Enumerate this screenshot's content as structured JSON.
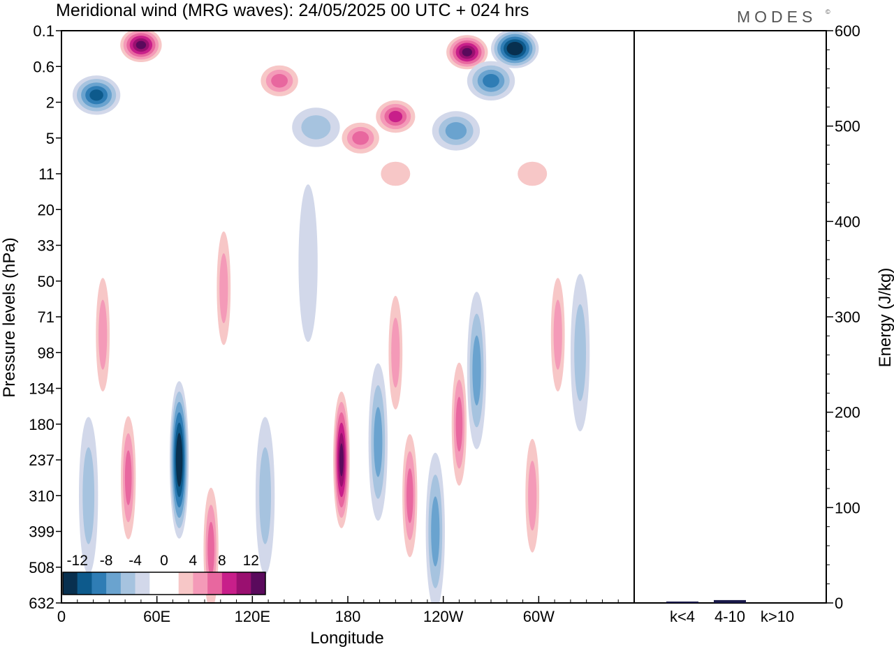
{
  "title": "Meridional wind (MRG waves):  24/05/2025  00 UTC  + 024 hrs",
  "brand": "MODES",
  "brand_mark": "©",
  "chart_data": [
    {
      "type": "heatmap",
      "title": "Meridional wind (MRG waves):  24/05/2025  00 UTC  + 024 hrs",
      "xlabel": "Longitude",
      "ylabel": "Pressure levels (hPa)",
      "x_ticks": [
        "0",
        "60E",
        "120E",
        "180",
        "120W",
        "60W"
      ],
      "x_tick_degrees": [
        0,
        60,
        120,
        180,
        240,
        300
      ],
      "xlim": [
        0,
        360
      ],
      "y_ticks": [
        "0.1",
        "0.6",
        "2",
        "5",
        "11",
        "20",
        "33",
        "50",
        "71",
        "98",
        "134",
        "180",
        "237",
        "310",
        "399",
        "508",
        "632"
      ],
      "colorbar": {
        "labels": [
          "-12",
          "-8",
          "-4",
          "0",
          "4",
          "8",
          "12"
        ],
        "label_levels": [
          -12,
          -8,
          -4,
          0,
          4,
          8,
          12
        ],
        "levels": [
          -14,
          -12,
          -10,
          -8,
          -6,
          -4,
          -2,
          2,
          4,
          6,
          8,
          10,
          12,
          14
        ],
        "colors": [
          "#08304f",
          "#0d5a8c",
          "#2f7db5",
          "#6aa3cf",
          "#a6c3df",
          "#d2d8ea",
          "#ffffff",
          "#ffffff",
          "#f7c7c7",
          "#f49ab8",
          "#e8679f",
          "#c81f8a",
          "#9a1070",
          "#5a0a5c"
        ],
        "placement": "bottom-left inside plot"
      },
      "blobs": [
        {
          "lon": 50,
          "level_index": 0.4,
          "value": 14
        },
        {
          "lon": 285,
          "level_index": 0.5,
          "value": -14
        },
        {
          "lon": 255,
          "level_index": 0.6,
          "value": 14
        },
        {
          "lon": 22,
          "level_index": 1.8,
          "value": -10
        },
        {
          "lon": 137,
          "level_index": 1.4,
          "value": 8
        },
        {
          "lon": 210,
          "level_index": 2.4,
          "value": 10
        },
        {
          "lon": 188,
          "level_index": 3.0,
          "value": 8
        },
        {
          "lon": 270,
          "level_index": 1.4,
          "value": -8
        },
        {
          "lon": 248,
          "level_index": 2.8,
          "value": -6
        },
        {
          "lon": 160,
          "level_index": 2.7,
          "value": -4
        },
        {
          "lon": 210,
          "level_index": 4.0,
          "value": 4
        },
        {
          "lon": 296,
          "level_index": 4.0,
          "value": 4
        },
        {
          "lon": 26,
          "level_index": 8.5,
          "value": 5
        },
        {
          "lon": 102,
          "level_index": 7.2,
          "value": 5
        },
        {
          "lon": 155,
          "level_index": 6.5,
          "value": -2
        },
        {
          "lon": 74,
          "level_index": 12.0,
          "value": -14
        },
        {
          "lon": 42,
          "level_index": 12.5,
          "value": 7
        },
        {
          "lon": 17,
          "level_index": 13.0,
          "value": -4
        },
        {
          "lon": 94,
          "level_index": 14.5,
          "value": 8
        },
        {
          "lon": 128,
          "level_index": 13.0,
          "value": -4
        },
        {
          "lon": 176,
          "level_index": 12.0,
          "value": 14
        },
        {
          "lon": 199,
          "level_index": 11.5,
          "value": -5
        },
        {
          "lon": 219,
          "level_index": 13.0,
          "value": 8
        },
        {
          "lon": 235,
          "level_index": 14.0,
          "value": -5
        },
        {
          "lon": 250,
          "level_index": 11.0,
          "value": 8
        },
        {
          "lon": 261,
          "level_index": 9.5,
          "value": -5
        },
        {
          "lon": 296,
          "level_index": 13.0,
          "value": 6
        },
        {
          "lon": 312,
          "level_index": 8.5,
          "value": 5
        },
        {
          "lon": 326,
          "level_index": 9.0,
          "value": -4
        },
        {
          "lon": 210,
          "level_index": 9.0,
          "value": 5
        }
      ]
    },
    {
      "type": "bar",
      "categories": [
        "k<4",
        "4-10",
        "k>10"
      ],
      "values": [
        1,
        3,
        0
      ],
      "ylabel": "Energy (J/kg)",
      "ylim": [
        0,
        600
      ],
      "y_ticks": [
        "0",
        "100",
        "200",
        "300",
        "400",
        "500",
        "600"
      ],
      "bar_color": "#1a1a4a"
    }
  ]
}
